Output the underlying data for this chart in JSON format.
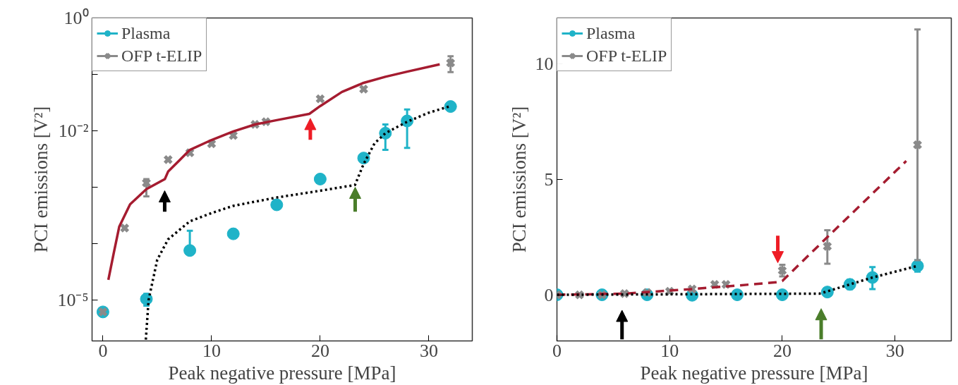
{
  "chart_data": [
    {
      "type": "scatter",
      "xlabel": "Peak negative pressure [MPa]",
      "ylabel": "PCI emissions [V²]",
      "log": "y",
      "xlim": [
        -1,
        34
      ],
      "ylim": [
        1.9e-06,
        1
      ],
      "xticks": [
        0,
        10,
        20,
        30
      ],
      "yticks": [
        {
          "value": 1e-05,
          "label": "10⁻⁵"
        },
        {
          "value": 0.0001,
          "label": null
        },
        {
          "value": 0.001,
          "label": null
        },
        {
          "value": 0.01,
          "label": "10⁻²"
        },
        {
          "value": 0.1,
          "label": null
        },
        {
          "value": 1,
          "label": "10⁰"
        }
      ],
      "grid": false,
      "legend": "top left",
      "series": [
        {
          "name": "Plasma",
          "marker": "circle",
          "color": "#1fb3c8",
          "x": [
            0,
            4,
            8,
            12,
            16,
            20,
            24,
            26,
            28,
            32
          ],
          "values": [
            6.2e-06,
            1.05e-05,
            7.6e-05,
            0.00015,
            0.00049,
            0.0014,
            0.0033,
            0.0091,
            0.015,
            0.027
          ],
          "errors": [
            null,
            [
              8e-06,
              1.3e-05
            ],
            [
              7.6e-05,
              0.00017
            ],
            null,
            null,
            null,
            null,
            [
              0.0046,
              0.013
            ],
            [
              0.005,
              0.024
            ],
            null
          ]
        },
        {
          "name": "OFP t-ELIP",
          "marker": "cross",
          "color": "#8a8a8a",
          "x": [
            0,
            2,
            4,
            6,
            8,
            10,
            12,
            14,
            15,
            20,
            24,
            32
          ],
          "values": [
            6.2e-06,
            0.00019,
            0.0012,
            0.0031,
            0.0041,
            0.0059,
            0.0083,
            0.013,
            0.0145,
            0.037,
            0.055,
            0.16
          ],
          "errors": [
            null,
            null,
            [
              0.00069,
              0.0014
            ],
            null,
            null,
            null,
            null,
            null,
            null,
            null,
            null,
            [
              0.11,
              0.21
            ]
          ]
        },
        {
          "type": "line",
          "line_style": "solid",
          "color": "#a51c30",
          "x": [
            0.5,
            1,
            1.5,
            2.5,
            4,
            5.7,
            6,
            8,
            10,
            12,
            14,
            16,
            19,
            20,
            22,
            24,
            26,
            28,
            31
          ],
          "values": [
            2.3e-05,
            6.9e-05,
            0.0002,
            0.0005,
            0.00093,
            0.0014,
            0.0019,
            0.0046,
            0.0069,
            0.0098,
            0.013,
            0.0155,
            0.02,
            0.0275,
            0.049,
            0.071,
            0.091,
            0.112,
            0.151
          ]
        },
        {
          "type": "line",
          "line_style": "dotted",
          "color": "#000000",
          "x": [
            3.95,
            4.2,
            5,
            6,
            8,
            10,
            12,
            16,
            20,
            23.2,
            24,
            25,
            26,
            28,
            30,
            32
          ],
          "values": [
            2e-06,
            1e-05,
            5.2e-05,
            0.00012,
            0.00025,
            0.00035,
            0.00047,
            0.00066,
            0.00087,
            0.0011,
            0.0026,
            0.006,
            0.0091,
            0.0145,
            0.021,
            0.0275
          ]
        }
      ]
    },
    {
      "type": "scatter",
      "xlabel": "Peak negative pressure [MPa]",
      "ylabel": "PCI emissions [V²]",
      "xlim": [
        0,
        35
      ],
      "ylim": [
        -2,
        12
      ],
      "xticks": [
        0,
        10,
        20,
        30
      ],
      "yticks": [
        0,
        5,
        10
      ],
      "grid": false,
      "legend": "top left",
      "series": [
        {
          "name": "Plasma",
          "marker": "circle",
          "color": "#1fb3c8",
          "x": [
            0,
            4,
            8,
            12,
            16,
            20,
            24,
            26,
            28,
            32
          ],
          "values": [
            0,
            0,
            0,
            -0.02,
            0,
            0,
            0.12,
            0.45,
            0.75,
            1.25
          ],
          "errors": [
            null,
            null,
            null,
            null,
            null,
            null,
            null,
            0.2,
            [
              0.25,
              1.2
            ],
            0.25
          ]
        },
        {
          "name": "OFP t-ELIP",
          "marker": "cross",
          "color": "#8a8a8a",
          "x": [
            0,
            2,
            4,
            6,
            8,
            10,
            12,
            14,
            15,
            20,
            24,
            32
          ],
          "values": [
            0,
            0,
            0,
            0.05,
            0.1,
            0.15,
            0.25,
            0.45,
            0.45,
            1.05,
            2.1,
            6.5
          ],
          "errors": [
            null,
            null,
            null,
            null,
            null,
            null,
            null,
            null,
            null,
            [
              0.8,
              1.3
            ],
            [
              1.35,
              2.8
            ],
            [
              1.5,
              11.5
            ]
          ]
        },
        {
          "type": "line",
          "line_style": "dashed",
          "color": "#a51c30",
          "x": [
            0,
            6,
            12,
            16,
            19.6,
            20,
            24,
            31
          ],
          "values": [
            0,
            0.05,
            0.25,
            0.4,
            0.55,
            0.6,
            2.5,
            5.8
          ]
        },
        {
          "type": "line",
          "line_style": "dotted",
          "color": "#000000",
          "x": [
            0,
            23.3,
            24,
            28,
            32
          ],
          "values": [
            0,
            0.05,
            0.15,
            0.75,
            1.25
          ]
        }
      ]
    }
  ]
}
